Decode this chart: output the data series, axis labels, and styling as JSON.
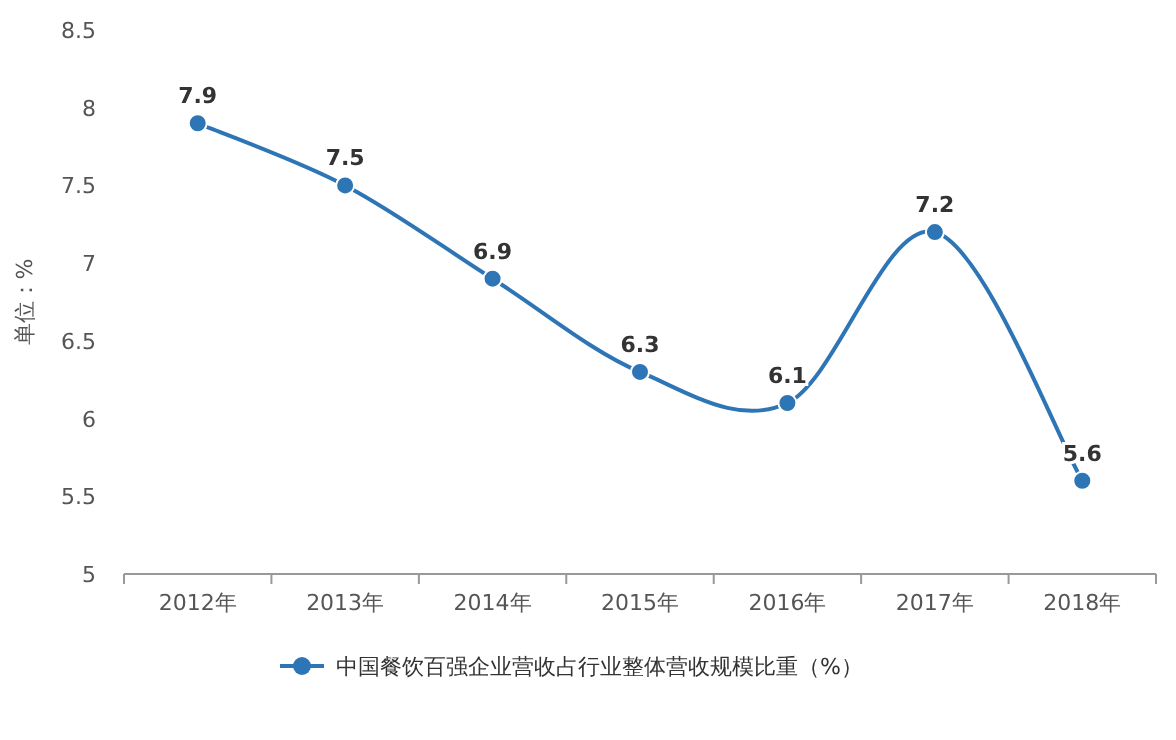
{
  "chart_data": {
    "type": "line",
    "ylabel": "单位：%",
    "categories": [
      "2012年",
      "2013年",
      "2014年",
      "2015年",
      "2016年",
      "2017年",
      "2018年"
    ],
    "series": [
      {
        "name": "中国餐饮百强企业营收占行业整体营收规模比重（%）",
        "color": "#2e75b6",
        "values": [
          7.9,
          7.5,
          6.9,
          6.3,
          6.1,
          7.2,
          5.6
        ]
      }
    ],
    "ylim": [
      5,
      8.5
    ],
    "yticks": [
      5,
      5.5,
      6,
      6.5,
      7,
      7.5,
      8,
      8.5
    ],
    "data_labels": true,
    "legend": "bottom",
    "marker": "circle",
    "line_style": "solid"
  }
}
